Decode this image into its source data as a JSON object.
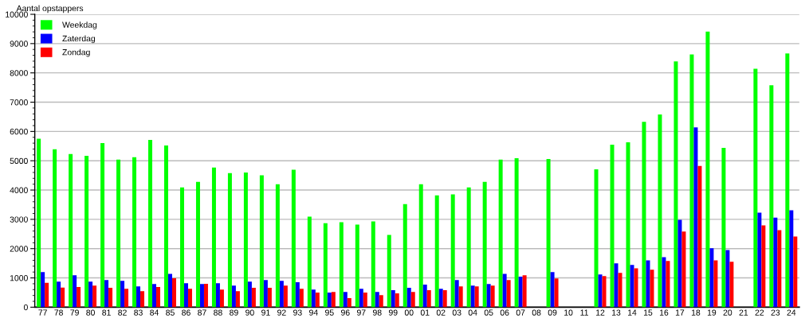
{
  "chart_data": {
    "type": "bar",
    "ylabel": "Aantal opstappers",
    "categories": [
      "77",
      "78",
      "79",
      "80",
      "81",
      "82",
      "83",
      "84",
      "85",
      "86",
      "87",
      "88",
      "89",
      "90",
      "91",
      "92",
      "93",
      "94",
      "95",
      "96",
      "97",
      "98",
      "99",
      "00",
      "01",
      "02",
      "03",
      "04",
      "05",
      "06",
      "07",
      "08",
      "09",
      "10",
      "11",
      "12",
      "13",
      "14",
      "15",
      "16",
      "17",
      "18",
      "19",
      "20",
      "21",
      "22",
      "23",
      "24"
    ],
    "series": [
      {
        "name": "Weekdag",
        "color": "#00ff00",
        "values": [
          5750,
          5390,
          5230,
          5170,
          5600,
          5040,
          5120,
          5710,
          5520,
          4090,
          4280,
          4770,
          4580,
          4600,
          4500,
          4200,
          4690,
          3090,
          2870,
          2900,
          2820,
          2930,
          2470,
          3520,
          4200,
          3820,
          3850,
          4090,
          4280,
          5040,
          5090,
          null,
          5060,
          null,
          null,
          4710,
          5550,
          5630,
          6330,
          6580,
          8390,
          8630,
          9410,
          5440,
          null,
          8140,
          7580,
          8660
        ]
      },
      {
        "name": "Zaterdag",
        "color": "#0000ff",
        "values": [
          1200,
          870,
          1090,
          870,
          930,
          900,
          710,
          790,
          1140,
          820,
          790,
          820,
          740,
          870,
          930,
          900,
          850,
          600,
          500,
          520,
          630,
          520,
          580,
          660,
          770,
          630,
          930,
          740,
          790,
          1140,
          1040,
          null,
          1200,
          null,
          null,
          1120,
          1500,
          1440,
          1600,
          1710,
          2980,
          6140,
          2010,
          1950,
          null,
          3230,
          3060,
          3310
        ]
      },
      {
        "name": "Zondag",
        "color": "#ff0000",
        "values": [
          830,
          670,
          690,
          740,
          660,
          630,
          550,
          690,
          990,
          630,
          800,
          600,
          550,
          660,
          660,
          740,
          630,
          500,
          520,
          310,
          500,
          410,
          470,
          520,
          580,
          580,
          710,
          710,
          740,
          930,
          1090,
          null,
          980,
          null,
          null,
          1060,
          1170,
          1330,
          1280,
          1580,
          2580,
          4820,
          1600,
          1550,
          null,
          2790,
          2630,
          2410
        ]
      }
    ],
    "ylim": [
      0,
      10000
    ],
    "yticks": [
      0,
      1000,
      2000,
      3000,
      4000,
      5000,
      6000,
      7000,
      8000,
      9000,
      10000
    ],
    "grid": "y",
    "legend": "top left"
  }
}
